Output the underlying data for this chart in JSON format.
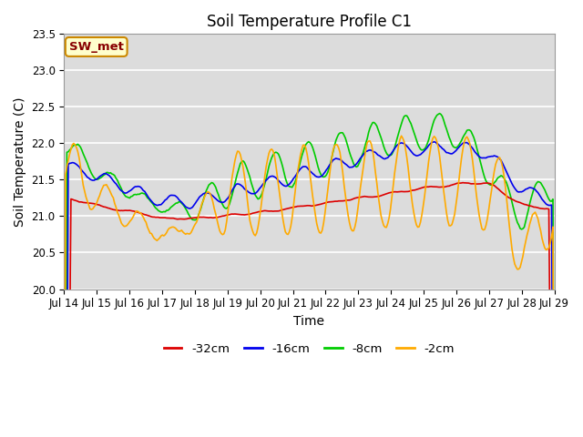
{
  "title": "Soil Temperature Profile C1",
  "xlabel": "Time",
  "ylabel": "Soil Temperature (C)",
  "ylim": [
    20.0,
    23.5
  ],
  "yticks": [
    20.0,
    20.5,
    21.0,
    21.5,
    22.0,
    22.5,
    23.0,
    23.5
  ],
  "colors": {
    "-32cm": "#dd0000",
    "-16cm": "#0000ee",
    "-8cm": "#00cc00",
    "-2cm": "#ffaa00"
  },
  "plot_bg": "#dcdcdc",
  "annotation_text": "SW_met",
  "annotation_facecolor": "#ffffcc",
  "annotation_edgecolor": "#cc8800",
  "annotation_textcolor": "#880000",
  "title_fontsize": 12,
  "axis_fontsize": 10,
  "tick_fontsize": 8.5
}
